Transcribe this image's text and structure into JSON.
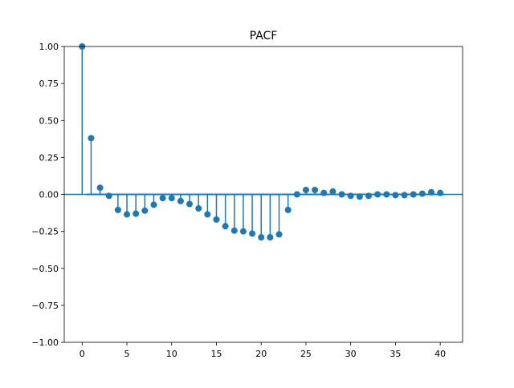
{
  "chart_data": {
    "type": "stem",
    "title": "PACF",
    "xlabel": "",
    "ylabel": "",
    "xlim": [
      -2,
      42.5
    ],
    "ylim": [
      -1.0,
      1.0
    ],
    "x_ticks": [
      0,
      5,
      10,
      15,
      20,
      25,
      30,
      35,
      40
    ],
    "y_ticks": [
      -1.0,
      -0.75,
      -0.5,
      -0.25,
      0.0,
      0.25,
      0.5,
      0.75,
      1.0
    ],
    "x_tick_labels": [
      "0",
      "5",
      "10",
      "15",
      "20",
      "25",
      "30",
      "35",
      "40"
    ],
    "y_tick_labels": [
      "−1.00",
      "−0.75",
      "−0.50",
      "−0.25",
      "0.00",
      "0.25",
      "0.50",
      "0.75",
      "1.00"
    ],
    "grid": false,
    "colors": {
      "stem": "#1f77b4",
      "confidence_band": "#a8c8e8",
      "axes": "#000000"
    },
    "confidence_band": [
      -0.01,
      0.01
    ],
    "series": [
      {
        "lags": [
          0,
          1,
          2,
          3,
          4,
          5,
          6,
          7,
          8,
          9,
          10,
          11,
          12,
          13,
          14,
          15,
          16,
          17,
          18,
          19,
          20,
          21,
          22,
          23,
          24,
          25,
          26,
          27,
          28,
          29,
          30,
          31,
          32,
          33,
          34,
          35,
          36,
          37,
          38,
          39,
          40
        ],
        "values": [
          1.0,
          0.38,
          0.045,
          -0.01,
          -0.105,
          -0.135,
          -0.13,
          -0.11,
          -0.07,
          -0.025,
          -0.025,
          -0.045,
          -0.065,
          -0.095,
          -0.135,
          -0.17,
          -0.215,
          -0.245,
          -0.25,
          -0.265,
          -0.29,
          -0.29,
          -0.27,
          -0.105,
          0.0,
          0.03,
          0.03,
          0.01,
          0.02,
          0.0,
          -0.01,
          -0.015,
          -0.01,
          0.0,
          0.0,
          -0.005,
          -0.005,
          0.0,
          0.005,
          0.015,
          0.01
        ]
      }
    ]
  }
}
